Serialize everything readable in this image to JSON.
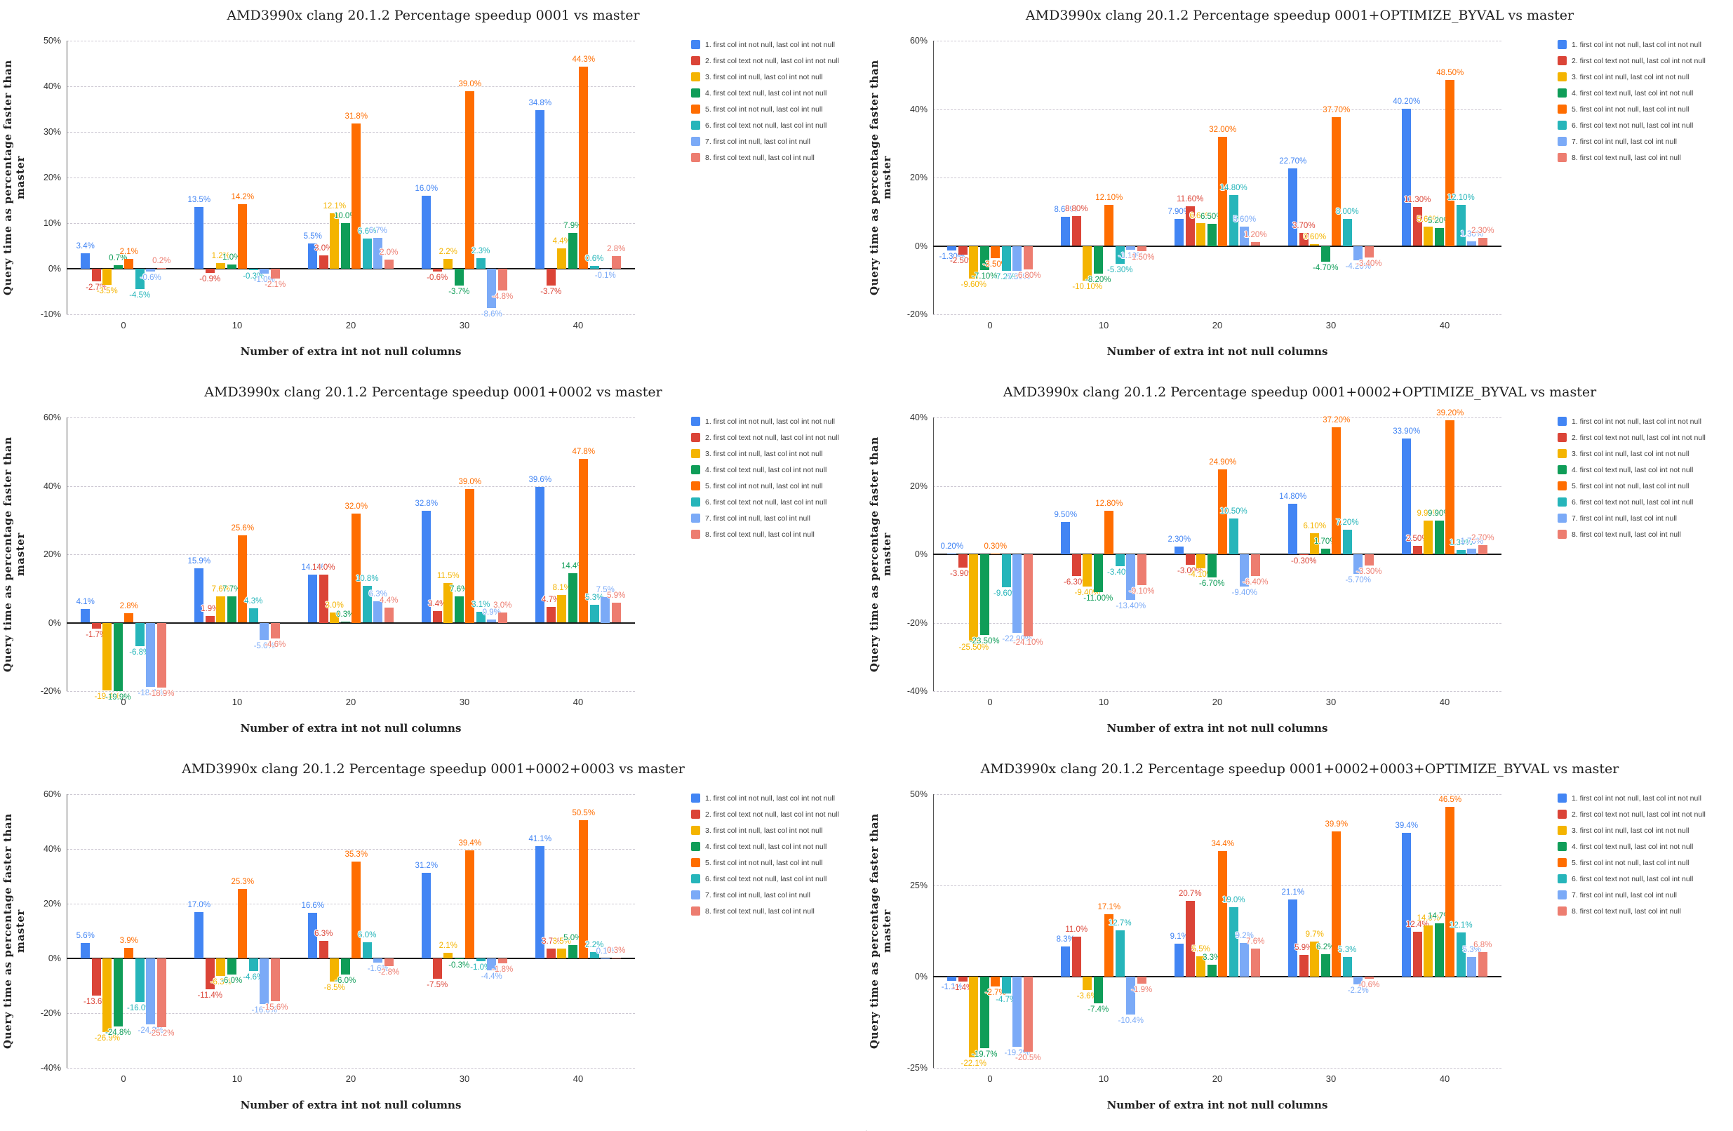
{
  "axes": {
    "ylabel": "Query time as percentage faster than master",
    "xlabel": "Number of extra int not null columns",
    "categories": [
      "0",
      "10",
      "20",
      "30",
      "40"
    ]
  },
  "legend": [
    {
      "label": "1. first col int not null, last col int not null",
      "color": "#4285F4"
    },
    {
      "label": "2. first col text not null, last col int not null",
      "color": "#DB4437"
    },
    {
      "label": "3. first col int null, last col int not null",
      "color": "#F4B400"
    },
    {
      "label": "4. first col text null, last col int not null",
      "color": "#0F9D58"
    },
    {
      "label": "5. first col int not null, last col int null",
      "color": "#FF6D00"
    },
    {
      "label": "6. first col text not null, last col int null",
      "color": "#26B5BA"
    },
    {
      "label": "7. first col int null, last col int null",
      "color": "#7BAAF7"
    },
    {
      "label": "8. first col text null, last col int null",
      "color": "#ED7D70"
    }
  ],
  "chart_data": [
    {
      "type": "bar",
      "title": "AMD3990x clang 20.1.2 Percentage speedup 0001 vs master",
      "decimals": 1,
      "yticks": [
        "50%",
        "40%",
        "30%",
        "20%",
        "10%",
        "0%",
        "-10%"
      ],
      "categories": [
        "0",
        "10",
        "20",
        "30",
        "40"
      ],
      "series": [
        {
          "name": "1. first col int not null, last col int not null",
          "values": [
            3.4,
            13.5,
            5.5,
            16.0,
            34.8
          ]
        },
        {
          "name": "2. first col text not null, last col int not null",
          "values": [
            -2.7,
            -0.9,
            3.0,
            -0.6,
            -3.7
          ]
        },
        {
          "name": "3. first col int null, last col int not null",
          "values": [
            -3.5,
            1.2,
            12.1,
            2.2,
            4.4
          ]
        },
        {
          "name": "4. first col text null, last col int not null",
          "values": [
            0.7,
            1.0,
            10.0,
            -3.7,
            7.9
          ]
        },
        {
          "name": "5. first col int not null, last col int null",
          "values": [
            2.1,
            14.2,
            31.8,
            39.0,
            44.3
          ]
        },
        {
          "name": "6. first col text not null, last col int null",
          "values": [
            -4.5,
            -0.3,
            6.6,
            2.3,
            0.6
          ]
        },
        {
          "name": "7. first col int null, last col int null",
          "values": [
            -0.6,
            -1.0,
            6.7,
            -8.6,
            -0.1
          ]
        },
        {
          "name": "8. first col text null, last col int null",
          "values": [
            0.2,
            -2.1,
            2.0,
            -4.8,
            2.8
          ]
        }
      ]
    },
    {
      "type": "bar",
      "title": "AMD3990x clang 20.1.2 Percentage speedup 0001+OPTIMIZE_BYVAL vs master",
      "decimals": 2,
      "yticks": [
        "60%",
        "40%",
        "20%",
        "0%",
        "-20%"
      ],
      "categories": [
        "0",
        "10",
        "20",
        "30",
        "40"
      ],
      "series": [
        {
          "name": "1. first col int not null, last col int not null",
          "values": [
            -1.3,
            8.6,
            7.9,
            22.7,
            40.2
          ]
        },
        {
          "name": "2. first col text not null, last col int not null",
          "values": [
            -2.5,
            8.8,
            11.6,
            3.7,
            11.3
          ]
        },
        {
          "name": "3. first col int null, last col int not null",
          "values": [
            -9.6,
            -10.1,
            6.6,
            0.6,
            5.6
          ]
        },
        {
          "name": "4. first col text null, last col int not null",
          "values": [
            -7.1,
            -8.2,
            6.5,
            -4.7,
            5.2
          ]
        },
        {
          "name": "5. first col int not null, last col int null",
          "values": [
            -3.5,
            12.1,
            32.0,
            37.7,
            48.5
          ]
        },
        {
          "name": "6. first col text not null, last col int null",
          "values": [
            -7.2,
            -5.3,
            14.8,
            8.0,
            12.1
          ]
        },
        {
          "name": "7. first col int null, last col int null",
          "values": [
            -7.3,
            -1.1,
            5.6,
            -4.2,
            1.3
          ]
        },
        {
          "name": "8. first col text null, last col int null",
          "values": [
            -6.8,
            -1.5,
            1.2,
            -3.4,
            2.3
          ]
        }
      ]
    },
    {
      "type": "bar",
      "title": "AMD3990x clang 20.1.2 Percentage speedup 0001+0002 vs master",
      "decimals": 1,
      "yticks": [
        "60%",
        "40%",
        "20%",
        "0%",
        "-20%"
      ],
      "categories": [
        "0",
        "10",
        "20",
        "30",
        "40"
      ],
      "series": [
        {
          "name": "1. first col int not null, last col int not null",
          "values": [
            4.1,
            15.9,
            14.1,
            32.8,
            39.6
          ]
        },
        {
          "name": "2. first col text not null, last col int not null",
          "values": [
            -1.7,
            1.9,
            14.0,
            3.4,
            4.7
          ]
        },
        {
          "name": "3. first col int null, last col int not null",
          "values": [
            -19.8,
            7.6,
            3.0,
            11.5,
            8.1
          ]
        },
        {
          "name": "4. first col text null, last col int not null",
          "values": [
            -19.9,
            7.7,
            0.3,
            7.6,
            14.4
          ]
        },
        {
          "name": "5. first col int not null, last col int null",
          "values": [
            2.8,
            25.6,
            32.0,
            39.0,
            47.8
          ]
        },
        {
          "name": "6. first col text not null, last col int null",
          "values": [
            -6.8,
            4.3,
            10.8,
            3.1,
            5.3
          ]
        },
        {
          "name": "7. first col int null, last col int null",
          "values": [
            -18.7,
            -5.0,
            6.3,
            0.9,
            7.5
          ]
        },
        {
          "name": "8. first col text null, last col int null",
          "values": [
            -18.9,
            -4.6,
            4.4,
            3.0,
            5.9
          ]
        }
      ]
    },
    {
      "type": "bar",
      "title": "AMD3990x clang 20.1.2 Percentage speedup 0001+0002+OPTIMIZE_BYVAL vs master",
      "decimals": 2,
      "yticks": [
        "40%",
        "20%",
        "0%",
        "-20%",
        "-40%"
      ],
      "categories": [
        "0",
        "10",
        "20",
        "30",
        "40"
      ],
      "series": [
        {
          "name": "1. first col int not null, last col int not null",
          "values": [
            0.2,
            9.5,
            2.3,
            14.8,
            33.9
          ]
        },
        {
          "name": "2. first col text not null, last col int not null",
          "values": [
            -3.9,
            -6.3,
            -3.0,
            -0.3,
            2.5
          ]
        },
        {
          "name": "3. first col int null, last col int not null",
          "values": [
            -25.5,
            -9.4,
            -4.1,
            6.1,
            9.9
          ]
        },
        {
          "name": "4. first col text null, last col int not null",
          "values": [
            -23.5,
            -11.0,
            -6.7,
            1.7,
            9.9
          ]
        },
        {
          "name": "5. first col int not null, last col int null",
          "values": [
            0.3,
            12.8,
            24.9,
            37.2,
            39.2
          ]
        },
        {
          "name": "6. first col text not null, last col int null",
          "values": [
            -9.6,
            -3.4,
            10.5,
            7.2,
            1.3
          ]
        },
        {
          "name": "7. first col int null, last col int null",
          "values": [
            -22.9,
            -13.4,
            -9.4,
            -5.7,
            1.7
          ]
        },
        {
          "name": "8. first col text null, last col int null",
          "values": [
            -24.1,
            -9.1,
            -6.4,
            -3.3,
            2.7
          ]
        }
      ]
    },
    {
      "type": "bar",
      "title": "AMD3990x clang 20.1.2 Percentage speedup 0001+0002+0003 vs master",
      "decimals": 1,
      "yticks": [
        "60%",
        "40%",
        "20%",
        "0%",
        "-20%",
        "-40%"
      ],
      "categories": [
        "0",
        "10",
        "20",
        "30",
        "40"
      ],
      "series": [
        {
          "name": "1. first col int not null, last col int not null",
          "values": [
            5.6,
            17.0,
            16.6,
            31.2,
            41.1
          ]
        },
        {
          "name": "2. first col text not null, last col int not null",
          "values": [
            -13.6,
            -11.4,
            6.3,
            -7.5,
            3.7
          ]
        },
        {
          "name": "3. first col int null, last col int not null",
          "values": [
            -26.9,
            -6.3,
            -8.5,
            2.1,
            3.5
          ]
        },
        {
          "name": "4. first col text null, last col int not null",
          "values": [
            -24.8,
            -6.0,
            -6.0,
            -0.3,
            5.0
          ]
        },
        {
          "name": "5. first col int not null, last col int null",
          "values": [
            3.9,
            25.3,
            35.3,
            39.4,
            50.5
          ]
        },
        {
          "name": "6. first col text not null, last col int null",
          "values": [
            -16.0,
            -4.6,
            6.0,
            -1.0,
            2.2
          ]
        },
        {
          "name": "7. first col int null, last col int null",
          "values": [
            -24.2,
            -16.6,
            -1.6,
            -4.4,
            0.1
          ]
        },
        {
          "name": "8. first col text null, last col int null",
          "values": [
            -25.2,
            -15.6,
            -2.8,
            -1.8,
            0.3
          ]
        }
      ]
    },
    {
      "type": "bar",
      "title": "AMD3990x clang 20.1.2 Percentage speedup 0001+0002+0003+OPTIMIZE_BYVAL vs master",
      "decimals": 1,
      "yticks": [
        "50%",
        "25%",
        "0%",
        "-25%"
      ],
      "categories": [
        "0",
        "10",
        "20",
        "30",
        "40"
      ],
      "series": [
        {
          "name": "1. first col int not null, last col int not null",
          "values": [
            -1.1,
            8.3,
            9.1,
            21.1,
            39.4
          ]
        },
        {
          "name": "2. first col text not null, last col int not null",
          "values": [
            -1.4,
            11.0,
            20.7,
            5.9,
            12.4
          ]
        },
        {
          "name": "3. first col int null, last col int not null",
          "values": [
            -22.1,
            -3.6,
            5.5,
            9.7,
            14.0
          ]
        },
        {
          "name": "4. first col text null, last col int not null",
          "values": [
            -19.7,
            -7.4,
            3.3,
            6.2,
            14.7
          ]
        },
        {
          "name": "5. first col int not null, last col int null",
          "values": [
            -2.7,
            17.1,
            34.4,
            39.9,
            46.5
          ]
        },
        {
          "name": "6. first col text not null, last col int null",
          "values": [
            -4.7,
            12.7,
            19.0,
            5.3,
            12.1
          ]
        },
        {
          "name": "7. first col int null, last col int null",
          "values": [
            -19.2,
            -10.4,
            9.2,
            -2.2,
            5.3
          ]
        },
        {
          "name": "8. first col text null, last col int null",
          "values": [
            -20.5,
            -1.9,
            7.6,
            -0.6,
            6.8
          ]
        }
      ]
    }
  ]
}
